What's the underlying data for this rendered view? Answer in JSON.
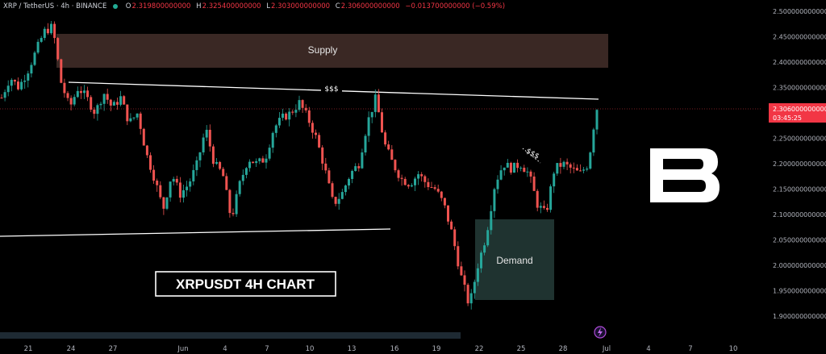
{
  "header": {
    "symbol": "XRP / TetherUS · 4h · BINANCE",
    "open_label": "O",
    "open": "2.319800000000",
    "high_label": "H",
    "high": "2.325400000000",
    "low_label": "L",
    "low": "2.303000000000",
    "close_label": "C",
    "close": "2.306000000000",
    "change": "−0.013700000000 (−0.59%)"
  },
  "price_axis": {
    "labels": [
      "2.500000000000",
      "2.450000000000",
      "2.400000000000",
      "2.350000000000",
      "2.300000000000",
      "2.250000000000",
      "2.200000000000",
      "2.150000000000",
      "2.100000000000",
      "2.050000000000",
      "2.000000000000",
      "1.950000000000",
      "1.900000000000"
    ],
    "current_price": "2.306000000000",
    "countdown": "03:45:25"
  },
  "time_axis": {
    "labels": [
      "21",
      "24",
      "27",
      "Jun",
      "4",
      "7",
      "10",
      "13",
      "16",
      "19",
      "22",
      "25",
      "28",
      "Jul",
      "4",
      "7",
      "10"
    ]
  },
  "annotations": {
    "supply": "Supply",
    "demand": "Demand",
    "liquidity_top": "$$$",
    "liquidity_right": "$$$",
    "chart_title": "XRPUSDT 4H CHART"
  },
  "colors": {
    "up": "#26a69a",
    "down": "#ef5350",
    "current_price": "#f23645",
    "supply_zone": "#3a2824",
    "demand_zone": "#1f3330"
  },
  "chart_data": {
    "type": "candlestick",
    "title": "XRPUSDT 4H CHART",
    "symbol": "XRP / TetherUS",
    "interval": "4h",
    "exchange": "BINANCE",
    "ylim": [
      1.88,
      2.52
    ],
    "x_tick_labels": [
      "21",
      "24",
      "27",
      "Jun",
      "4",
      "7",
      "10",
      "13",
      "16",
      "19",
      "22",
      "25",
      "28",
      "Jul",
      "4",
      "7",
      "10"
    ],
    "close_path": [
      [
        0,
        2.33
      ],
      [
        1,
        2.37
      ],
      [
        2,
        2.35
      ],
      [
        3,
        2.38
      ],
      [
        4,
        2.42
      ],
      [
        5,
        2.46
      ],
      [
        6,
        2.47
      ],
      [
        7,
        2.36
      ],
      [
        8,
        2.31
      ],
      [
        9,
        2.35
      ],
      [
        10,
        2.33
      ],
      [
        11,
        2.3
      ],
      [
        12,
        2.34
      ],
      [
        13,
        2.31
      ],
      [
        14,
        2.33
      ],
      [
        15,
        2.28
      ],
      [
        16,
        2.3
      ],
      [
        17,
        2.22
      ],
      [
        18,
        2.17
      ],
      [
        19,
        2.11
      ],
      [
        20,
        2.18
      ],
      [
        21,
        2.14
      ],
      [
        22,
        2.16
      ],
      [
        23,
        2.2
      ],
      [
        24,
        2.27
      ],
      [
        25,
        2.2
      ],
      [
        26,
        2.18
      ],
      [
        27,
        2.09
      ],
      [
        28,
        2.16
      ],
      [
        29,
        2.21
      ],
      [
        30,
        2.2
      ],
      [
        31,
        2.21
      ],
      [
        32,
        2.27
      ],
      [
        33,
        2.29
      ],
      [
        34,
        2.3
      ],
      [
        35,
        2.32
      ],
      [
        36,
        2.29
      ],
      [
        37,
        2.25
      ],
      [
        38,
        2.19
      ],
      [
        39,
        2.12
      ],
      [
        40,
        2.14
      ],
      [
        41,
        2.18
      ],
      [
        42,
        2.2
      ],
      [
        43,
        2.28
      ],
      [
        44,
        2.33
      ],
      [
        45,
        2.24
      ],
      [
        46,
        2.2
      ],
      [
        47,
        2.17
      ],
      [
        48,
        2.16
      ],
      [
        49,
        2.18
      ],
      [
        50,
        2.16
      ],
      [
        51,
        2.15
      ],
      [
        52,
        2.12
      ],
      [
        53,
        2.06
      ],
      [
        54,
        1.98
      ],
      [
        55,
        1.92
      ],
      [
        56,
        2.0
      ],
      [
        57,
        2.06
      ],
      [
        58,
        2.16
      ],
      [
        59,
        2.2
      ],
      [
        60,
        2.19
      ],
      [
        61,
        2.2
      ],
      [
        62,
        2.18
      ],
      [
        63,
        2.12
      ],
      [
        64,
        2.1
      ],
      [
        65,
        2.19
      ],
      [
        66,
        2.2
      ],
      [
        67,
        2.19
      ],
      [
        68,
        2.18
      ],
      [
        69,
        2.2
      ],
      [
        70,
        2.32
      ]
    ],
    "current_price": 2.306,
    "zones": [
      {
        "name": "Supply",
        "from": 2.392,
        "to": 2.455
      },
      {
        "name": "Demand",
        "from": 1.935,
        "to": 2.088
      }
    ],
    "trendlines": [
      "resistance (upper)",
      "support (lower)"
    ],
    "grid": false,
    "legend": "none"
  }
}
